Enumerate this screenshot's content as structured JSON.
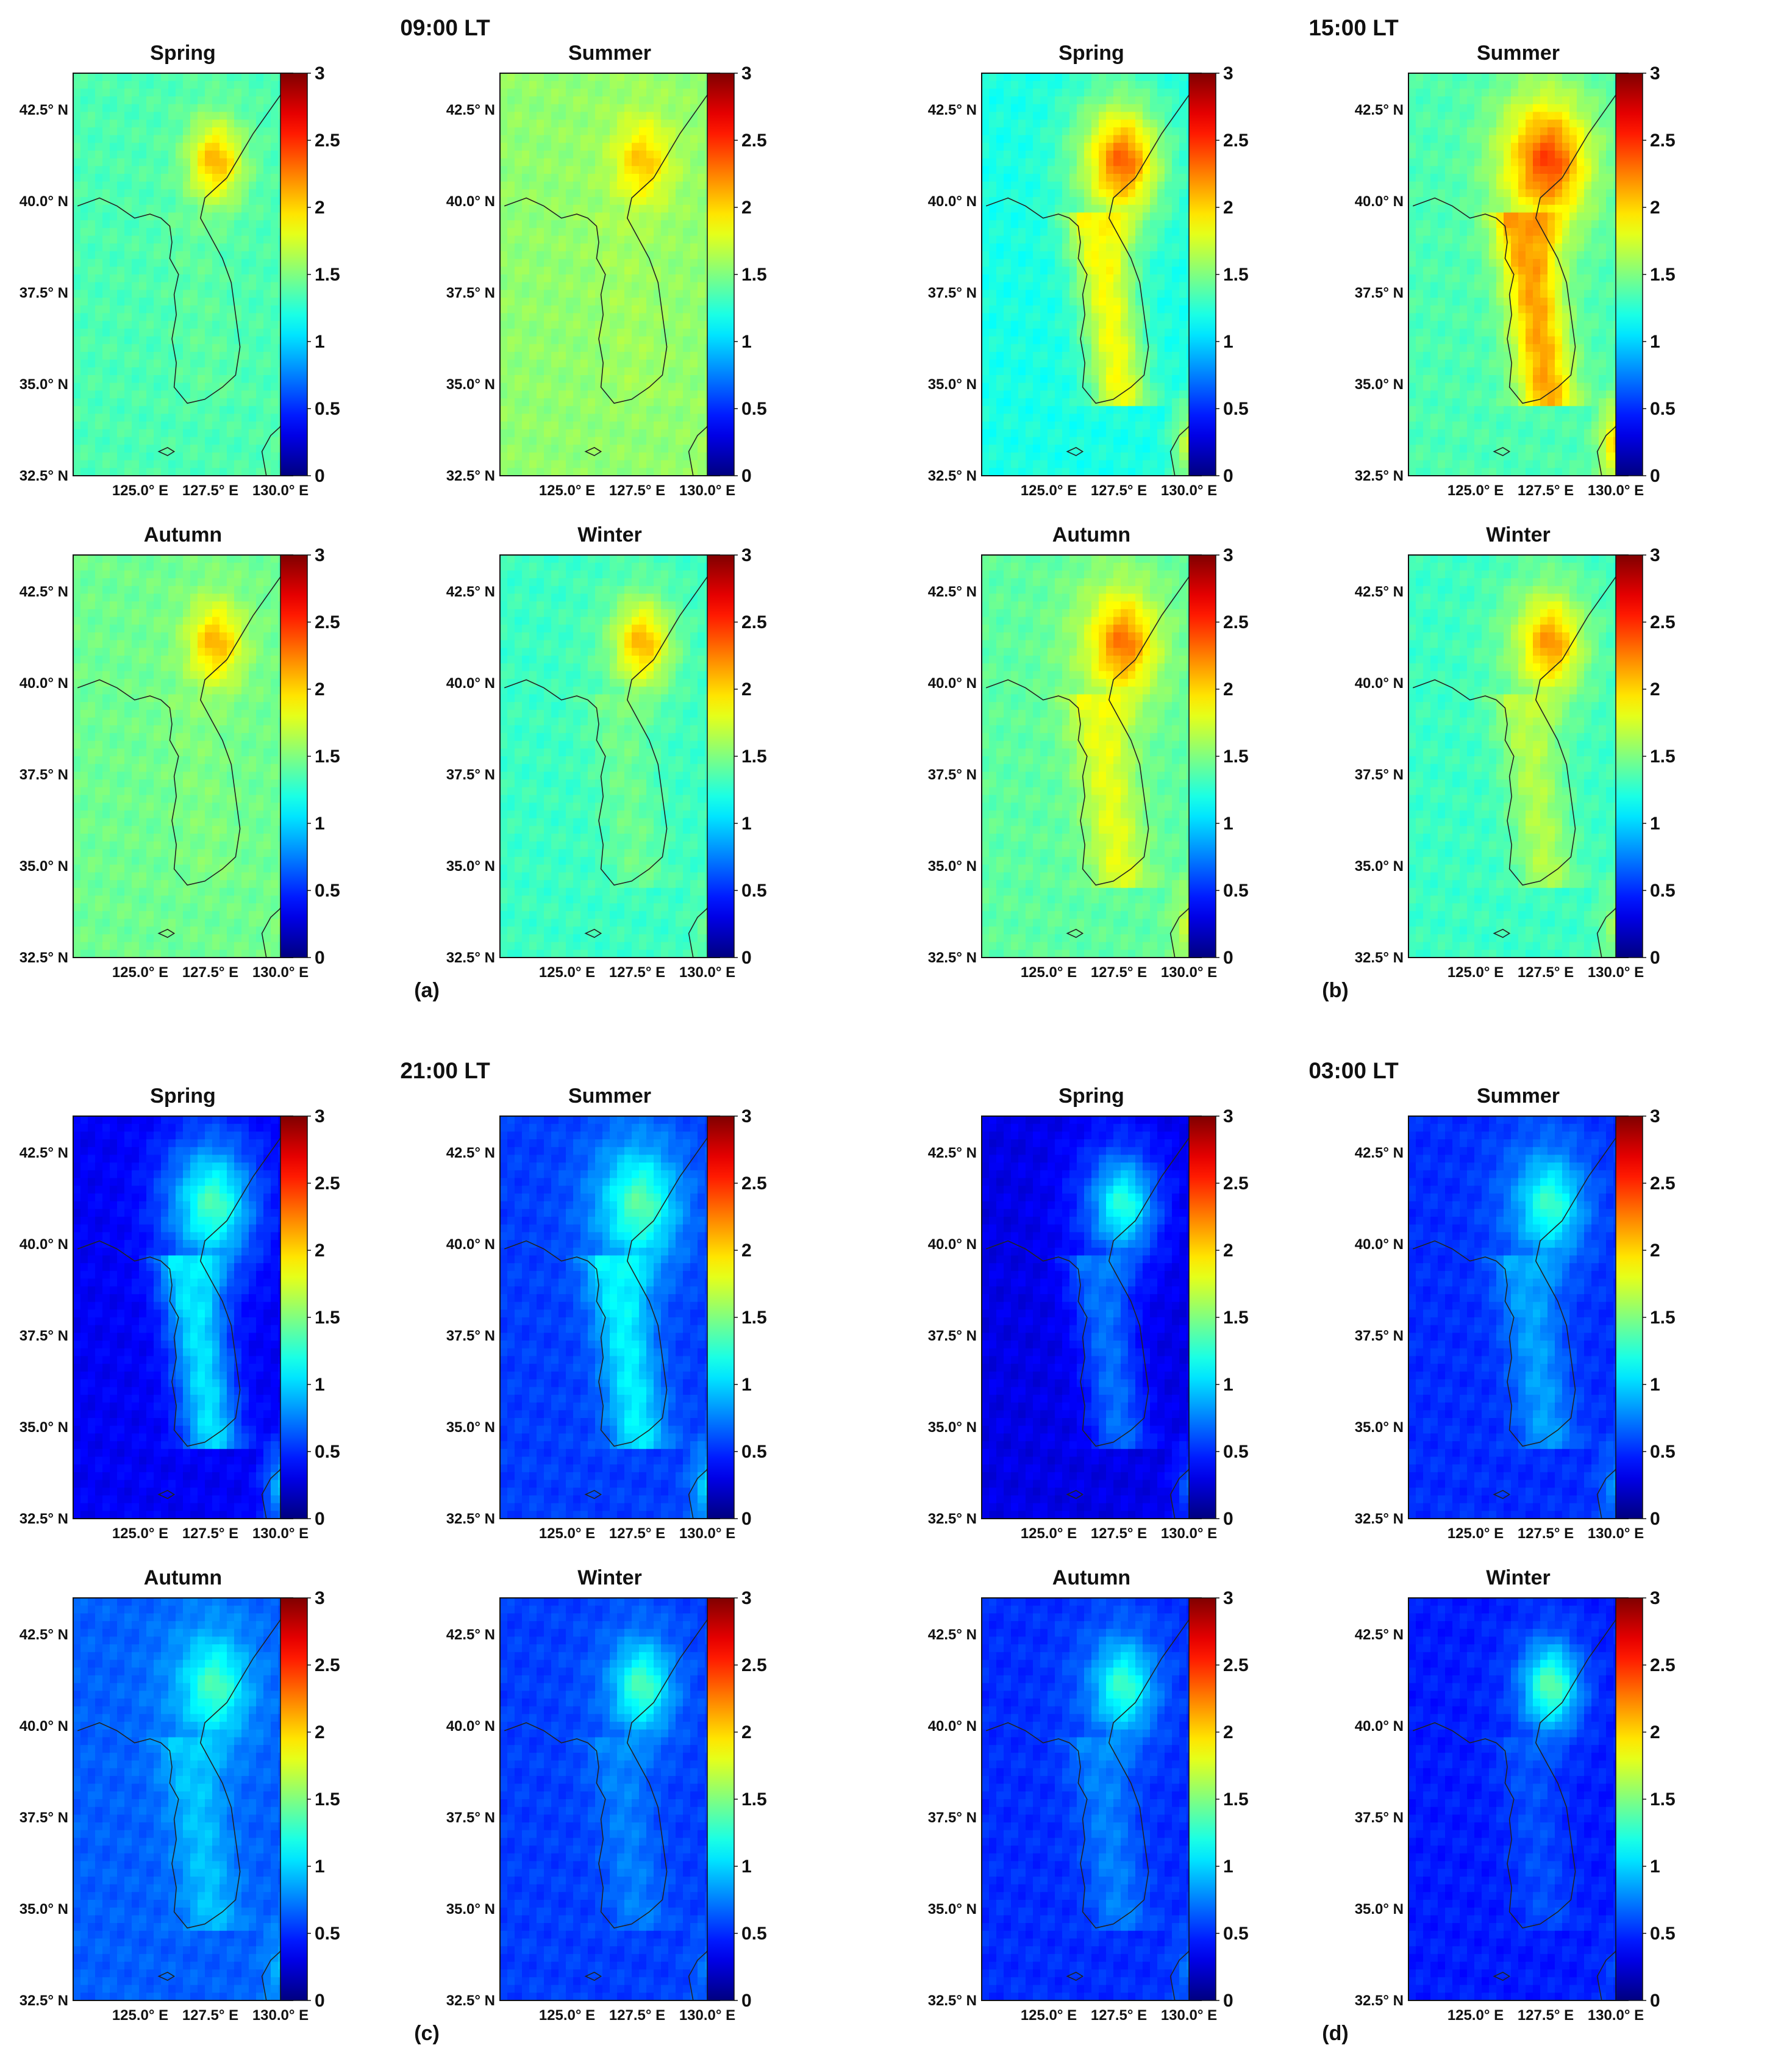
{
  "figure": {
    "panels": [
      {
        "id": "a",
        "label": "(a)",
        "time": "09:00 LT",
        "maps": [
          {
            "season": "Spring",
            "base": 1.4,
            "peak": 2.1,
            "ocean": 1.35
          },
          {
            "season": "Summer",
            "base": 1.6,
            "peak": 2.05,
            "ocean": 1.55
          },
          {
            "season": "Autumn",
            "base": 1.5,
            "peak": 2.1,
            "ocean": 1.45
          },
          {
            "season": "Winter",
            "base": 1.45,
            "peak": 2.1,
            "ocean": 1.3
          }
        ]
      },
      {
        "id": "b",
        "label": "(b)",
        "time": "15:00 LT",
        "maps": [
          {
            "season": "Spring",
            "base": 1.85,
            "peak": 2.35,
            "ocean": 1.2
          },
          {
            "season": "Summer",
            "base": 2.15,
            "peak": 2.45,
            "ocean": 1.35
          },
          {
            "season": "Autumn",
            "base": 1.8,
            "peak": 2.3,
            "ocean": 1.4
          },
          {
            "season": "Winter",
            "base": 1.65,
            "peak": 2.2,
            "ocean": 1.3
          }
        ]
      },
      {
        "id": "c",
        "label": "(c)",
        "time": "21:00 LT",
        "maps": [
          {
            "season": "Spring",
            "base": 1.05,
            "peak": 1.35,
            "ocean": 0.35
          },
          {
            "season": "Summer",
            "base": 1.1,
            "peak": 1.4,
            "ocean": 0.55
          },
          {
            "season": "Autumn",
            "base": 0.95,
            "peak": 1.35,
            "ocean": 0.65
          },
          {
            "season": "Winter",
            "base": 0.75,
            "peak": 1.35,
            "ocean": 0.55
          }
        ]
      },
      {
        "id": "d",
        "label": "(d)",
        "time": "03:00 LT",
        "maps": [
          {
            "season": "Spring",
            "base": 0.7,
            "peak": 1.25,
            "ocean": 0.3
          },
          {
            "season": "Summer",
            "base": 0.85,
            "peak": 1.3,
            "ocean": 0.5
          },
          {
            "season": "Autumn",
            "base": 0.75,
            "peak": 1.3,
            "ocean": 0.5
          },
          {
            "season": "Winter",
            "base": 0.6,
            "peak": 1.4,
            "ocean": 0.45
          }
        ]
      }
    ],
    "lat_labels": [
      "42.5° N",
      "40.0° N",
      "37.5° N",
      "35.0° N",
      "32.5° N"
    ],
    "lon_labels": [
      "125.0° E",
      "127.5° E",
      "130.0° E"
    ],
    "colorbar": {
      "labels": [
        "3",
        "2.5",
        "2",
        "1.5",
        "1",
        "0.5",
        "0"
      ],
      "range": [
        0,
        3
      ],
      "colormap": "jet"
    }
  }
}
